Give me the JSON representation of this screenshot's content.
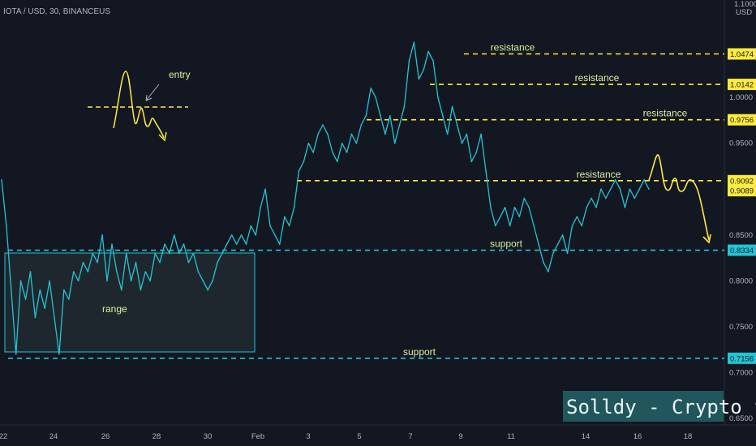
{
  "header": {
    "symbol": "IOTA / USD, 30, BINANCEUS",
    "price_top": "1.1000",
    "currency": "USD"
  },
  "chart_data": {
    "type": "line",
    "title": "IOTA / USD, 30, BINANCEUS",
    "xlabel": "",
    "ylabel": "USD",
    "ylim": [
      0.65,
      1.1
    ],
    "x_ticks": [
      "22",
      "24",
      "26",
      "28",
      "30",
      "Feb",
      "3",
      "5",
      "7",
      "9",
      "11",
      "14",
      "16",
      "18"
    ],
    "y_ticks": [
      "1.0000",
      "0.9500",
      "0.9000",
      "0.8500",
      "0.8000",
      "0.7500",
      "0.7000",
      "0.6500"
    ],
    "series": [
      {
        "color": "#22c5d3",
        "x": [
          0,
          1,
          2,
          3,
          4,
          5,
          6,
          7,
          8,
          9,
          10,
          11,
          12,
          13,
          14,
          15,
          16,
          17,
          18,
          19,
          20,
          21,
          22,
          23,
          24,
          25,
          26,
          27,
          28,
          29,
          30,
          31,
          32,
          33,
          34,
          35,
          36,
          37,
          38,
          39,
          40,
          41,
          42,
          43,
          44,
          45,
          46,
          47,
          48,
          49,
          50,
          51,
          52,
          53,
          54,
          55,
          56,
          57,
          58,
          59,
          60,
          61,
          62,
          63,
          64,
          65,
          66,
          67,
          68,
          69,
          70,
          71,
          72,
          73,
          74,
          75,
          76,
          77,
          78,
          79,
          80,
          81,
          82,
          83,
          84,
          85,
          86,
          87,
          88,
          89,
          90,
          91,
          92,
          93,
          94,
          95,
          96,
          97,
          98,
          99,
          100,
          101,
          102,
          103,
          104,
          105,
          106,
          107,
          108,
          109,
          110,
          111,
          112,
          113,
          114,
          115,
          116,
          117,
          118,
          119,
          120,
          121,
          122,
          123,
          124,
          125,
          126,
          127,
          128,
          129,
          130,
          131,
          132,
          133,
          134,
          135
        ],
        "y": [
          0.91,
          0.86,
          0.79,
          0.72,
          0.8,
          0.78,
          0.81,
          0.76,
          0.79,
          0.77,
          0.8,
          0.76,
          0.72,
          0.79,
          0.78,
          0.81,
          0.8,
          0.82,
          0.81,
          0.83,
          0.82,
          0.85,
          0.8,
          0.84,
          0.81,
          0.79,
          0.83,
          0.8,
          0.82,
          0.79,
          0.81,
          0.8,
          0.83,
          0.82,
          0.84,
          0.83,
          0.85,
          0.83,
          0.84,
          0.82,
          0.83,
          0.81,
          0.8,
          0.79,
          0.8,
          0.82,
          0.83,
          0.84,
          0.85,
          0.84,
          0.85,
          0.84,
          0.86,
          0.85,
          0.88,
          0.9,
          0.86,
          0.85,
          0.84,
          0.87,
          0.86,
          0.88,
          0.92,
          0.93,
          0.95,
          0.94,
          0.96,
          0.97,
          0.96,
          0.94,
          0.93,
          0.95,
          0.94,
          0.96,
          0.95,
          0.97,
          0.98,
          1.01,
          1.0,
          0.98,
          0.96,
          0.98,
          0.95,
          0.97,
          0.99,
          1.04,
          1.06,
          1.02,
          1.03,
          1.05,
          1.04,
          1.0,
          0.98,
          0.96,
          0.99,
          0.97,
          0.95,
          0.96,
          0.93,
          0.94,
          0.96,
          0.92,
          0.88,
          0.86,
          0.87,
          0.88,
          0.86,
          0.88,
          0.87,
          0.89,
          0.88,
          0.86,
          0.84,
          0.82,
          0.81,
          0.83,
          0.84,
          0.85,
          0.83,
          0.86,
          0.87,
          0.86,
          0.88,
          0.89,
          0.88,
          0.9,
          0.89,
          0.9,
          0.91,
          0.9,
          0.88,
          0.9,
          0.89,
          0.9,
          0.91,
          0.9
        ]
      }
    ],
    "levels": [
      {
        "value": 1.0474,
        "label": "1.0474",
        "text": "resistance",
        "color": "#ffeb3b",
        "kind": "resistance"
      },
      {
        "value": 1.0142,
        "label": "1.0142",
        "text": "resistance",
        "color": "#ffeb3b",
        "kind": "resistance"
      },
      {
        "value": 0.9756,
        "label": "0.9756",
        "text": "resistance",
        "color": "#ffeb3b",
        "kind": "resistance"
      },
      {
        "value": 0.9092,
        "label": "0.9092",
        "text": "resistance",
        "color": "#ffeb3b",
        "kind": "resistance"
      },
      {
        "value": 0.8334,
        "label": "0.8334",
        "text": "support",
        "color": "#22c5d3",
        "kind": "support"
      },
      {
        "value": 0.7156,
        "label": "0.7156",
        "text": "support",
        "color": "#22c5d3",
        "kind": "support"
      }
    ],
    "current_price": {
      "value": 0.9089,
      "label": "0.9089"
    },
    "annotations": {
      "range": "range",
      "entry": "entry"
    }
  },
  "watermark": "Solldy - Crypto for U",
  "colors": {
    "background": "#131722",
    "price_line": "#22c5d3",
    "resistance": "#ffeb3b",
    "support": "#22c5d3",
    "current_price": "#ffeb3b"
  }
}
